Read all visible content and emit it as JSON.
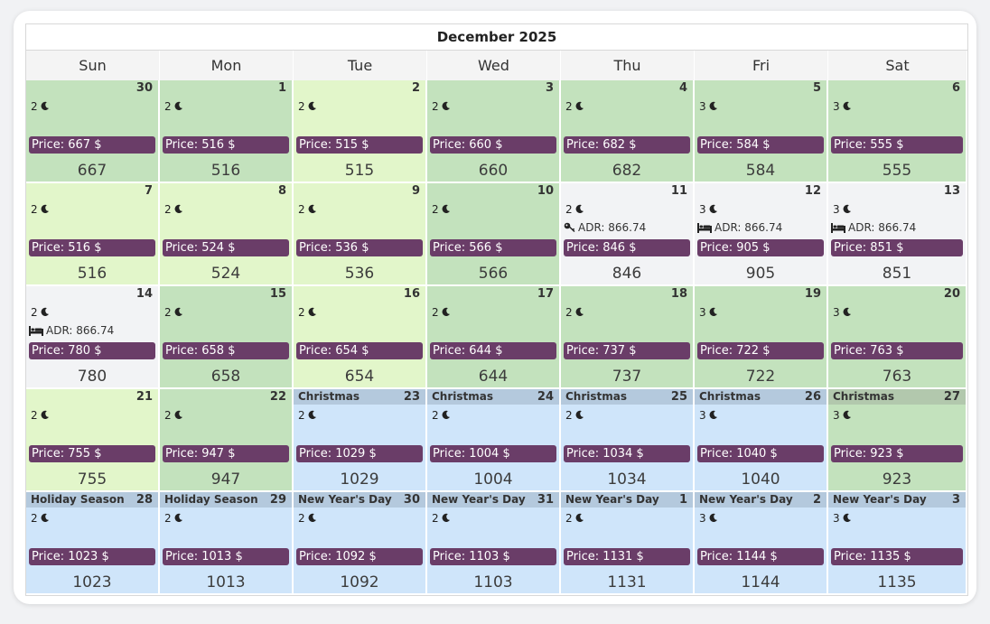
{
  "calendar": {
    "title": "December 2025",
    "weekdays": [
      "Sun",
      "Mon",
      "Tue",
      "Wed",
      "Thu",
      "Fri",
      "Sat"
    ],
    "price_prefix": "Price: ",
    "currency": " $",
    "colors": {
      "green": "#c3e2bd",
      "lime": "#e2f6ca",
      "gray": "#f2f3f5",
      "blue": "#cfe5fa",
      "price_bar": "#6a3d68",
      "holiday_bar": "#b4c9dd"
    },
    "weeks": [
      [
        {
          "day": "30",
          "nights": "2",
          "price": "667",
          "status": "green"
        },
        {
          "day": "1",
          "nights": "2",
          "price": "516",
          "status": "green"
        },
        {
          "day": "2",
          "nights": "2",
          "price": "515",
          "status": "lime"
        },
        {
          "day": "3",
          "nights": "2",
          "price": "660",
          "status": "green"
        },
        {
          "day": "4",
          "nights": "2",
          "price": "682",
          "status": "green"
        },
        {
          "day": "5",
          "nights": "3",
          "price": "584",
          "status": "green"
        },
        {
          "day": "6",
          "nights": "3",
          "price": "555",
          "status": "green"
        }
      ],
      [
        {
          "day": "7",
          "nights": "2",
          "price": "516",
          "status": "lime"
        },
        {
          "day": "8",
          "nights": "2",
          "price": "524",
          "status": "lime"
        },
        {
          "day": "9",
          "nights": "2",
          "price": "536",
          "status": "lime"
        },
        {
          "day": "10",
          "nights": "2",
          "price": "566",
          "status": "green"
        },
        {
          "day": "11",
          "nights": "2",
          "price": "846",
          "status": "gray",
          "adr": "ADR: 866.74",
          "adr_icon": "key-icon"
        },
        {
          "day": "12",
          "nights": "3",
          "price": "905",
          "status": "gray",
          "adr": "ADR: 866.74",
          "adr_icon": "bed-icon"
        },
        {
          "day": "13",
          "nights": "3",
          "price": "851",
          "status": "gray",
          "adr": "ADR: 866.74",
          "adr_icon": "bed-icon"
        }
      ],
      [
        {
          "day": "14",
          "nights": "2",
          "price": "780",
          "status": "gray",
          "adr": "ADR: 866.74",
          "adr_icon": "bed-icon"
        },
        {
          "day": "15",
          "nights": "2",
          "price": "658",
          "status": "green"
        },
        {
          "day": "16",
          "nights": "2",
          "price": "654",
          "status": "lime"
        },
        {
          "day": "17",
          "nights": "2",
          "price": "644",
          "status": "green"
        },
        {
          "day": "18",
          "nights": "2",
          "price": "737",
          "status": "green"
        },
        {
          "day": "19",
          "nights": "3",
          "price": "722",
          "status": "green"
        },
        {
          "day": "20",
          "nights": "3",
          "price": "763",
          "status": "green"
        }
      ],
      [
        {
          "day": "21",
          "nights": "2",
          "price": "755",
          "status": "lime"
        },
        {
          "day": "22",
          "nights": "2",
          "price": "947",
          "status": "green"
        },
        {
          "day": "23",
          "nights": "2",
          "price": "1029",
          "status": "blue",
          "holiday": "Christmas"
        },
        {
          "day": "24",
          "nights": "2",
          "price": "1004",
          "status": "blue",
          "holiday": "Christmas"
        },
        {
          "day": "25",
          "nights": "2",
          "price": "1034",
          "status": "blue",
          "holiday": "Christmas"
        },
        {
          "day": "26",
          "nights": "3",
          "price": "1040",
          "status": "blue",
          "holiday": "Christmas"
        },
        {
          "day": "27",
          "nights": "3",
          "price": "923",
          "status": "green",
          "holiday": "Christmas"
        }
      ],
      [
        {
          "day": "28",
          "nights": "2",
          "price": "1023",
          "status": "blue",
          "holiday": "Holiday Season"
        },
        {
          "day": "29",
          "nights": "2",
          "price": "1013",
          "status": "blue",
          "holiday": "Holiday Season"
        },
        {
          "day": "30",
          "nights": "2",
          "price": "1092",
          "status": "blue",
          "holiday": "New Year's Day"
        },
        {
          "day": "31",
          "nights": "2",
          "price": "1103",
          "status": "blue",
          "holiday": "New Year's Day"
        },
        {
          "day": "1",
          "nights": "2",
          "price": "1131",
          "status": "blue",
          "holiday": "New Year's Day"
        },
        {
          "day": "2",
          "nights": "3",
          "price": "1144",
          "status": "blue",
          "holiday": "New Year's Day"
        },
        {
          "day": "3",
          "nights": "3",
          "price": "1135",
          "status": "blue",
          "holiday": "New Year's Day"
        }
      ]
    ]
  }
}
